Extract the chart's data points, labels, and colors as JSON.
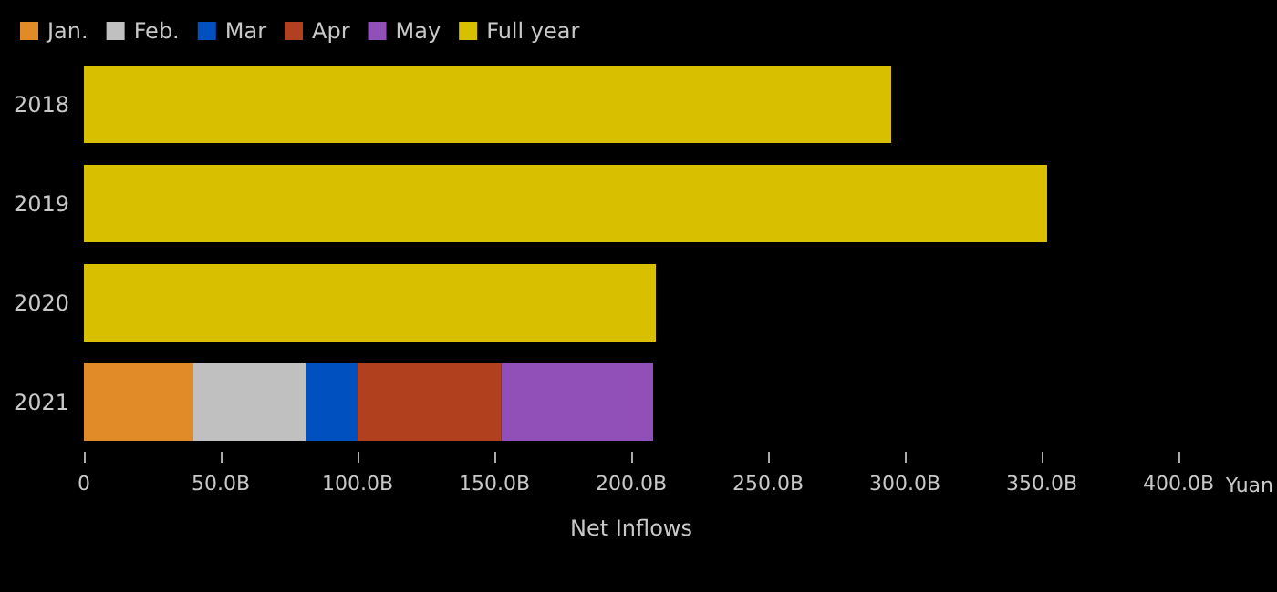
{
  "chart_data": {
    "type": "bar",
    "orientation": "horizontal",
    "stacked": true,
    "xlabel": "Net Inflows",
    "categories": [
      "2018",
      "2019",
      "2020",
      "2021"
    ],
    "series": [
      {
        "name": "Jan.",
        "color": "#e08b28",
        "values": [
          null,
          null,
          null,
          40
        ]
      },
      {
        "name": "Feb.",
        "color": "#c0c0c0",
        "values": [
          null,
          null,
          null,
          41
        ]
      },
      {
        "name": "Mar",
        "color": "#0050c0",
        "values": [
          null,
          null,
          null,
          19
        ]
      },
      {
        "name": "Apr",
        "color": "#b0401e",
        "values": [
          null,
          null,
          null,
          52.5
        ]
      },
      {
        "name": "May",
        "color": "#9050b8",
        "values": [
          null,
          null,
          null,
          55.5
        ]
      },
      {
        "name": "Full year",
        "color": "#d8bf00",
        "values": [
          295,
          352,
          209,
          null
        ]
      }
    ],
    "xlim": [
      0,
      400
    ],
    "xticks": [
      0,
      {
        "value": 50,
        "label": "50.0B"
      },
      {
        "value": 100,
        "label": "100.0B"
      },
      {
        "value": 150,
        "label": "150.0B"
      },
      {
        "value": 200,
        "label": "200.0B"
      },
      {
        "value": 250,
        "label": "250.0B"
      },
      {
        "value": 300,
        "label": "300.0B"
      },
      {
        "value": 350,
        "label": "350.0B"
      },
      {
        "value": 400,
        "label": "400.0B"
      }
    ],
    "annotations": [
      "Yuan"
    ],
    "grid": false,
    "legend": "top left"
  }
}
